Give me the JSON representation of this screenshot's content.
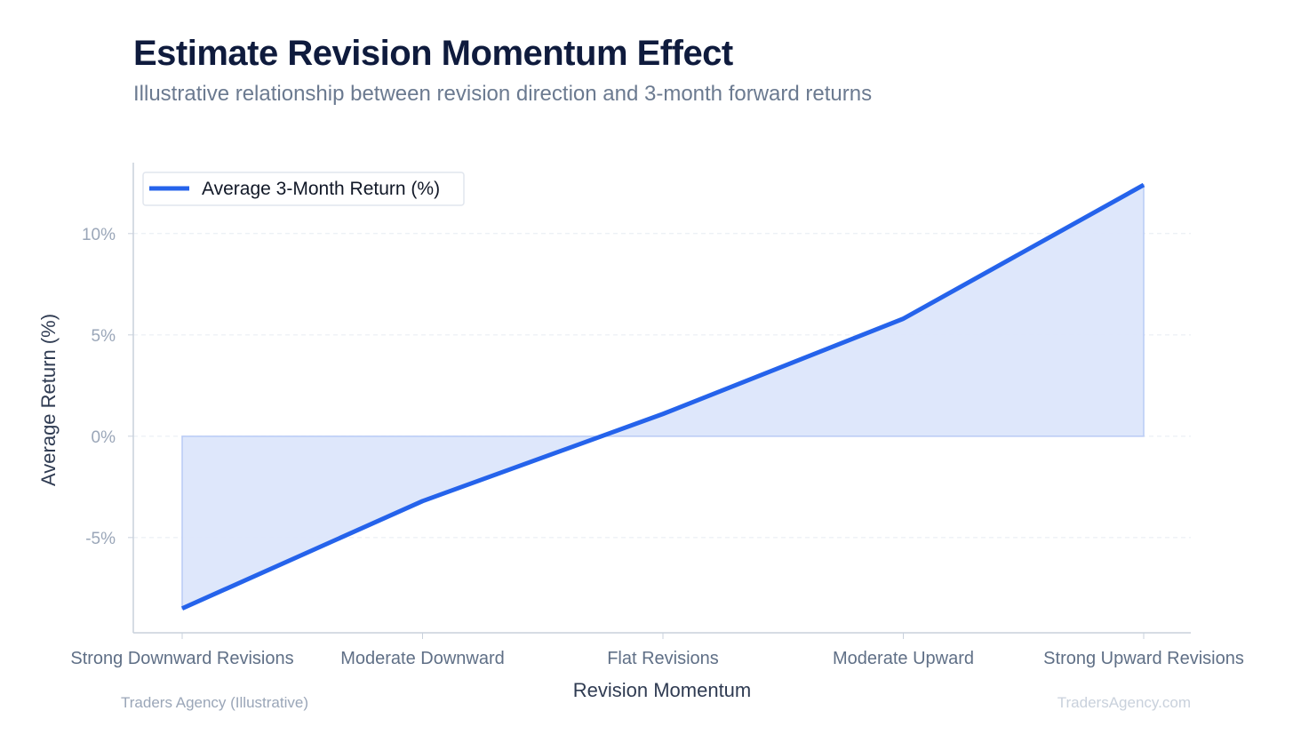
{
  "header": {
    "title": "Estimate Revision Momentum Effect",
    "subtitle": "Illustrative relationship between revision direction and 3-month forward returns"
  },
  "footer": {
    "source": "Traders Agency (Illustrative)",
    "brand": "TradersAgency.com"
  },
  "colors": {
    "line": "#2563eb",
    "fill": "#dce6fb",
    "grid": "#e6ebf2",
    "axis": "#c9d1dc"
  },
  "chart_data": {
    "type": "area",
    "title": "Estimate Revision Momentum Effect",
    "subtitle": "Illustrative relationship between revision direction and 3-month forward returns",
    "xlabel": "Revision Momentum",
    "ylabel": "Average Return (%)",
    "categories": [
      "Strong Downward Revisions",
      "Moderate Downward",
      "Flat Revisions",
      "Moderate Upward",
      "Strong Upward Revisions"
    ],
    "series": [
      {
        "name": "Average 3-Month Return (%)",
        "values": [
          -8.5,
          -3.2,
          1.1,
          5.8,
          12.4
        ]
      }
    ],
    "ylim": [
      -9.7,
      13.5
    ],
    "yticks": [
      -5,
      0,
      5,
      10
    ],
    "ytick_labels": [
      "-5%",
      "0%",
      "5%",
      "10%"
    ],
    "grid": true,
    "legend_position": "top-left"
  }
}
